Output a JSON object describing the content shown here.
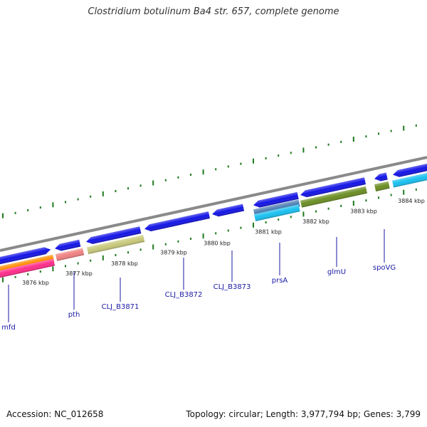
{
  "title": "Clostridium botulinum Ba4 str. 657, complete genome",
  "footer": {
    "accession": "Accession: NC_012658",
    "summary": "Topology: circular; Length: 3,977,794 bp; Genes: 3,799"
  },
  "colors": {
    "backbone": "#8a8a8a",
    "gene_default": "#1414e6",
    "orange": "#ff8c00",
    "pink": "#ff2d8a",
    "salmon": "#f08080",
    "khaki": "#c8c87a",
    "olive": "#6b8e23",
    "slate": "#4f7fb3",
    "cyan": "#18c0f0",
    "tick": "#1e7a1e",
    "label": "#1a1aa6"
  },
  "ticks": [
    {
      "label": "3876 kbp"
    },
    {
      "label": "3877 kbp"
    },
    {
      "label": "3878 kbp"
    },
    {
      "label": "3879 kbp"
    },
    {
      "label": "3880 kbp"
    },
    {
      "label": "3881 kbp"
    },
    {
      "label": "3882 kbp"
    },
    {
      "label": "3883 kbp"
    },
    {
      "label": "3884 kbp"
    }
  ],
  "gene_labels": [
    {
      "name": "mfd"
    },
    {
      "name": "pth"
    },
    {
      "name": "CLJ_B3871"
    },
    {
      "name": "CLJ_B3872"
    },
    {
      "name": "CLJ_B3873"
    },
    {
      "name": "prsA"
    },
    {
      "name": "glmU"
    },
    {
      "name": "spoVG"
    }
  ]
}
